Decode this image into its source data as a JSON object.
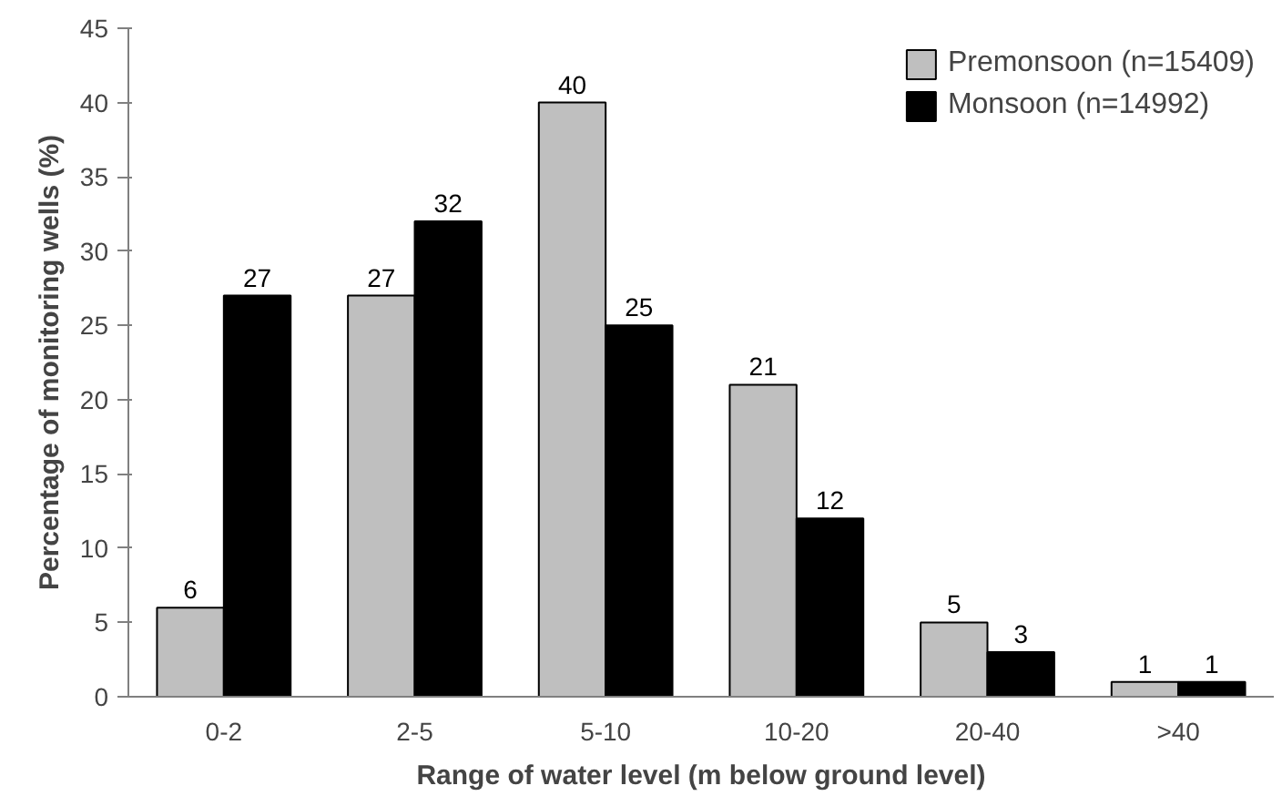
{
  "chart_data": {
    "type": "bar",
    "xlabel": "Range of water level (m below ground level)",
    "ylabel": "Percentage of monitoring wells (%)",
    "categories": [
      "0-2",
      "2-5",
      "5-10",
      "10-20",
      "20-40",
      ">40"
    ],
    "series": [
      {
        "name": "Premonsoon (n=15409)",
        "color": "#bfbfbf",
        "values": [
          6,
          27,
          40,
          21,
          5,
          1
        ]
      },
      {
        "name": "Monsoon (n=14992)",
        "color": "#000000",
        "values": [
          27,
          32,
          25,
          12,
          3,
          1
        ]
      }
    ],
    "ylim": [
      0,
      45
    ],
    "yticks": [
      0,
      5,
      10,
      15,
      20,
      25,
      30,
      35,
      40,
      45
    ],
    "grid": false,
    "legend": "top right",
    "data_labels": true
  }
}
